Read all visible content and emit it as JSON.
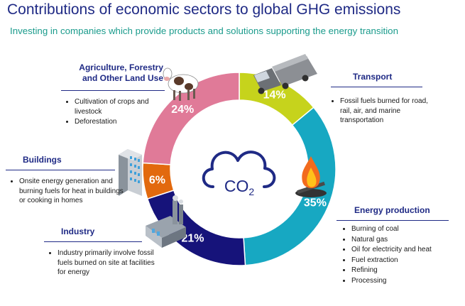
{
  "title": "Contributions of economic sectors to global GHG emissions",
  "subtitle": "Investing in companies which provide products and solutions supporting the energy transition",
  "center_label": "CO2",
  "chart_data": {
    "type": "pie",
    "variant": "donut",
    "unit": "%",
    "slices": [
      {
        "name": "Transport",
        "value": 14,
        "label": "14%",
        "color": "#c6d31c",
        "bullets": [
          "Fossil fuels burned for road, rail, air, and marine transportation"
        ]
      },
      {
        "name": "Energy production",
        "value": 35,
        "label": "35%",
        "color": "#17a8c2",
        "bullets": [
          "Burning of coal",
          "Natural gas",
          "Oil for electricity and heat",
          "Fuel extraction",
          "Refining",
          "Processing"
        ]
      },
      {
        "name": "Industry",
        "value": 21,
        "label": "21%",
        "color": "#16137a",
        "bullets": [
          "Industry primarily involve fossil fuels burned on site at facilities for energy"
        ]
      },
      {
        "name": "Buildings",
        "value": 6,
        "label": "6%",
        "color": "#e2690e",
        "bullets": [
          "Onsite energy generation and burning fuels for heat in buildings or cooking in homes"
        ]
      },
      {
        "name": "Agriculture, Forestry and Other Land Use",
        "value": 24,
        "label": "24%",
        "color": "#e07a98",
        "bullets": [
          "Cultivation of crops and livestock",
          "Deforestation"
        ]
      }
    ],
    "icons": [
      "truck-icon",
      "fire-icon",
      "factory-icon",
      "office-building-icon",
      "cow-icon",
      "co2-cloud-icon"
    ]
  }
}
